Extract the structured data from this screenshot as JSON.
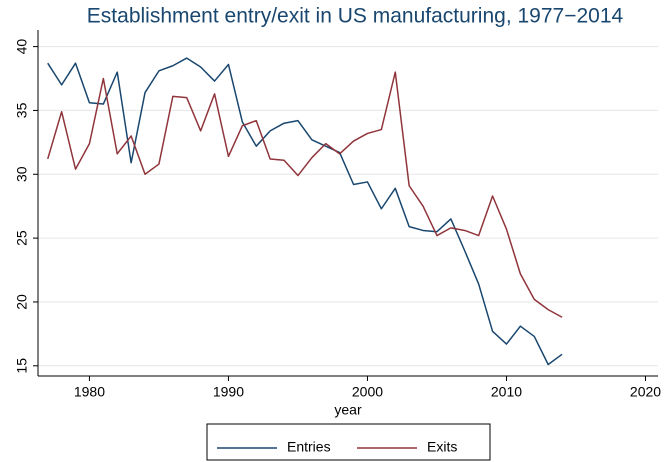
{
  "chart_data": {
    "type": "line",
    "title": "Establishment entry/exit in US manufacturing, 1977−2014",
    "x_label": "year",
    "x": [
      1977,
      1978,
      1979,
      1980,
      1981,
      1982,
      1983,
      1984,
      1985,
      1986,
      1987,
      1988,
      1989,
      1990,
      1991,
      1992,
      1993,
      1994,
      1995,
      1996,
      1997,
      1998,
      1999,
      2000,
      2001,
      2002,
      2003,
      2004,
      2005,
      2006,
      2007,
      2008,
      2009,
      2010,
      2011,
      2012,
      2013,
      2014
    ],
    "series": [
      {
        "name": "Entries",
        "color": "#1a476f",
        "values": [
          38.7,
          37.0,
          38.7,
          35.6,
          35.5,
          38.0,
          30.9,
          36.4,
          38.1,
          38.5,
          39.1,
          38.4,
          37.3,
          38.6,
          34.1,
          32.2,
          33.4,
          34.0,
          34.2,
          32.7,
          32.2,
          31.7,
          29.2,
          29.4,
          27.3,
          28.9,
          25.9,
          25.6,
          25.5,
          26.5,
          24.0,
          21.4,
          17.7,
          16.7,
          18.1,
          17.3,
          15.1,
          15.9
        ]
      },
      {
        "name": "Exits",
        "color": "#90353b",
        "values": [
          31.2,
          34.9,
          30.4,
          32.4,
          37.5,
          31.6,
          33.0,
          30.0,
          30.8,
          36.1,
          36.0,
          33.4,
          36.3,
          31.4,
          33.8,
          34.2,
          31.2,
          31.1,
          29.9,
          31.3,
          32.4,
          31.6,
          32.6,
          33.2,
          33.5,
          38.0,
          29.1,
          27.5,
          25.2,
          25.8,
          25.6,
          25.2,
          28.3,
          25.7,
          22.2,
          20.2,
          19.4,
          18.8
        ]
      }
    ],
    "xlim": [
      1976.3,
      2020.9
    ],
    "xticks": [
      1980,
      1990,
      2000,
      2010,
      2020
    ],
    "ylim": [
      14.2,
      41.3
    ],
    "yticks": [
      15,
      20,
      25,
      30,
      35,
      40
    ],
    "grid": true,
    "legend": "bottom"
  }
}
